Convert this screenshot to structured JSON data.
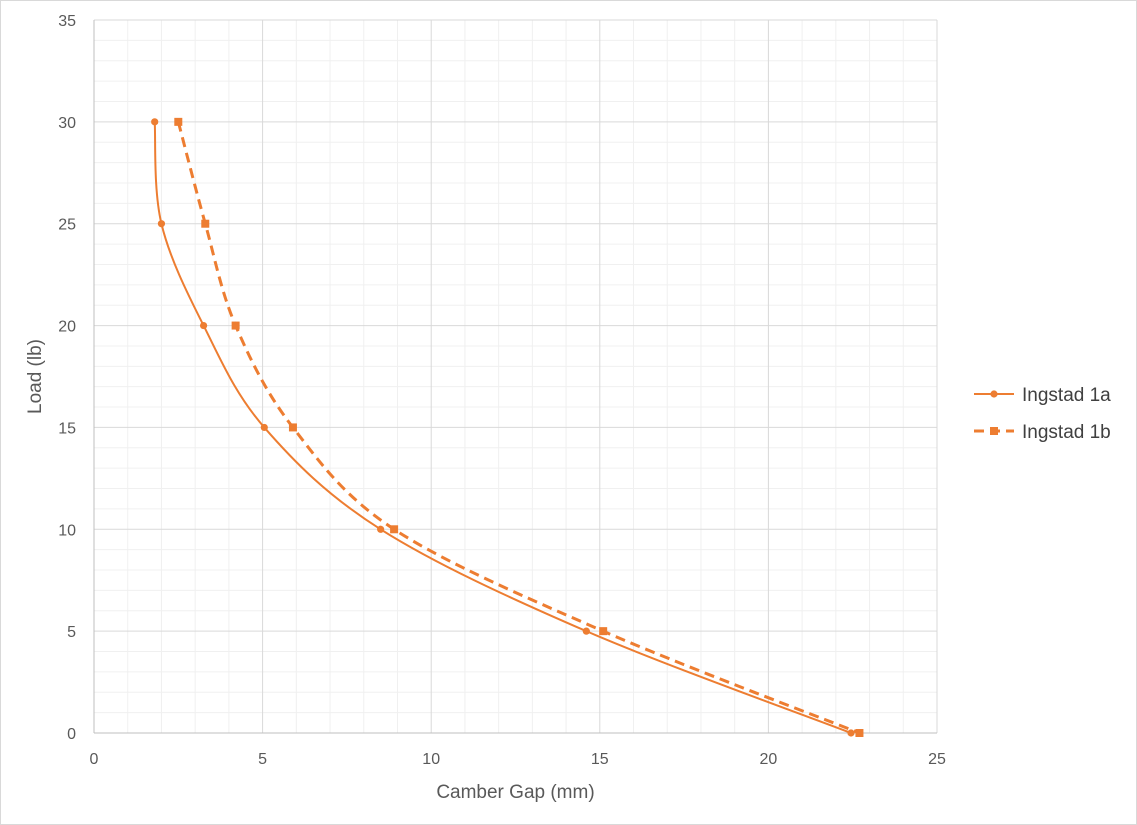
{
  "chart_data": {
    "type": "scatter",
    "title": "",
    "xlabel": "Camber Gap (mm)",
    "ylabel": "Load (lb)",
    "xlim": [
      0,
      25
    ],
    "ylim": [
      0,
      35
    ],
    "xticks": [
      0,
      5,
      10,
      15,
      20,
      25
    ],
    "yticks": [
      0,
      5,
      10,
      15,
      20,
      25,
      30,
      35
    ],
    "grid": {
      "major": true,
      "minor": true
    },
    "legend": "right",
    "series": [
      {
        "name": "Ingstad 1a",
        "color": "#ED7D31",
        "line": "solid",
        "marker": "circle",
        "smooth": true,
        "x": [
          1.8,
          2.0,
          3.25,
          5.05,
          8.5,
          14.6,
          22.45
        ],
        "y": [
          30,
          25,
          20,
          15,
          10,
          5,
          0
        ]
      },
      {
        "name": "Ingstad 1b",
        "color": "#ED7D31",
        "line": "dashed",
        "marker": "square",
        "smooth": true,
        "x": [
          2.5,
          3.3,
          4.2,
          5.9,
          8.9,
          15.1,
          22.7
        ],
        "y": [
          30,
          25,
          20,
          15,
          10,
          5,
          0
        ]
      }
    ]
  }
}
